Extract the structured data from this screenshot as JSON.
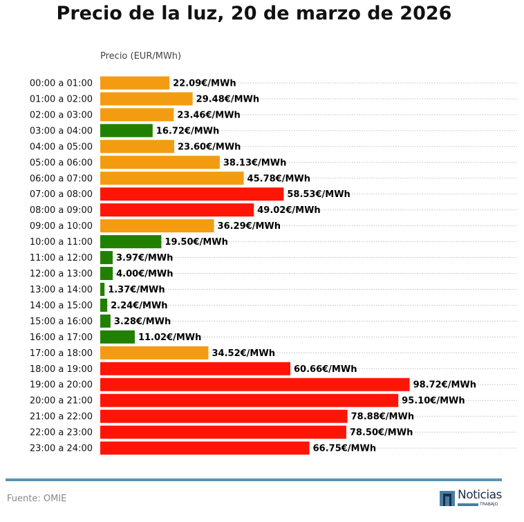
{
  "chart_data": {
    "type": "bar",
    "orientation": "horizontal",
    "title": "Precio de la luz, 20 de marzo de 2026",
    "xlabel": "Precio (EUR/MWh)",
    "value_suffix": "€/MWh",
    "grid": "horizontal dotted",
    "categories": [
      "00:00 a 01:00",
      "01:00 a 02:00",
      "02:00 a 03:00",
      "03:00 a 04:00",
      "04:00 a 05:00",
      "05:00 a 06:00",
      "06:00 a 07:00",
      "07:00 a 08:00",
      "08:00 a 09:00",
      "09:00 a 10:00",
      "10:00 a 11:00",
      "11:00 a 12:00",
      "12:00 a 13:00",
      "13:00 a 14:00",
      "14:00 a 15:00",
      "15:00 a 16:00",
      "16:00 a 17:00",
      "17:00 a 18:00",
      "18:00 a 19:00",
      "19:00 a 20:00",
      "20:00 a 21:00",
      "21:00 a 22:00",
      "22:00 a 23:00",
      "23:00 a 24:00"
    ],
    "values": [
      22.09,
      29.48,
      23.46,
      16.72,
      23.6,
      38.13,
      45.78,
      58.53,
      49.02,
      36.29,
      19.5,
      3.97,
      4.0,
      1.37,
      2.24,
      3.28,
      11.02,
      34.52,
      60.66,
      98.72,
      95.1,
      78.88,
      78.5,
      66.75
    ],
    "labels": [
      "22.09€/MWh",
      "29.48€/MWh",
      "23.46€/MWh",
      "16.72€/MWh",
      "23.60€/MWh",
      "38.13€/MWh",
      "45.78€/MWh",
      "58.53€/MWh",
      "49.02€/MWh",
      "36.29€/MWh",
      "19.50€/MWh",
      "3.97€/MWh",
      "4.00€/MWh",
      "1.37€/MWh",
      "2.24€/MWh",
      "3.28€/MWh",
      "11.02€/MWh",
      "34.52€/MWh",
      "60.66€/MWh",
      "98.72€/MWh",
      "95.10€/MWh",
      "78.88€/MWh",
      "78.50€/MWh",
      "66.75€/MWh"
    ],
    "levels": [
      "mid",
      "mid",
      "mid",
      "low",
      "mid",
      "mid",
      "mid",
      "high",
      "high",
      "mid",
      "low",
      "low",
      "low",
      "low",
      "low",
      "low",
      "low",
      "mid",
      "high",
      "high",
      "high",
      "high",
      "high",
      "high"
    ],
    "colors": {
      "low": "#218000",
      "mid": "#f39c12",
      "high": "#ff1505"
    },
    "xlim": [
      0,
      133
    ]
  },
  "footer": {
    "source": "Fuente: OMIE",
    "logo_text": "Noticias",
    "logo_sub": "TRABAJO"
  }
}
